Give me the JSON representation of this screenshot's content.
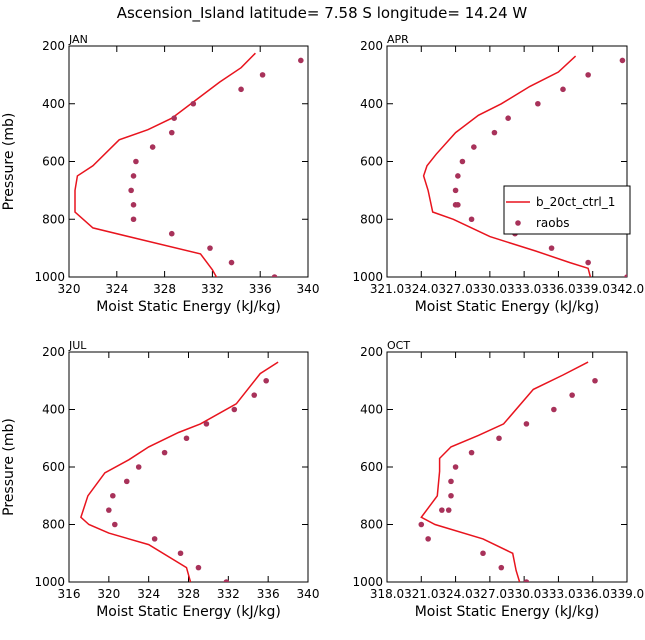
{
  "figure": {
    "title": "Ascension_Island  latitude= 7.58 S longitude= 14.24 W"
  },
  "legend": {
    "model_label": "b_20ct_ctrl_1",
    "obs_label": "raobs",
    "line_color": "#e8141e",
    "dot_color": "#a8325a"
  },
  "chart_data": [
    {
      "type": "line",
      "panel": "JAN",
      "title": "JAN",
      "xlabel": "Moist Static Energy (kJ/kg)",
      "ylabel": "Pressure (mb)",
      "xlim": [
        320,
        340
      ],
      "ylim": [
        1000,
        200
      ],
      "xticks": [
        320,
        324,
        328,
        332,
        336,
        340
      ],
      "xtick_labels": [
        "320",
        "324",
        "328",
        "332",
        "336",
        "340"
      ],
      "yticks": [
        200,
        400,
        600,
        800,
        1000
      ],
      "ytick_labels": [
        "200",
        "400",
        "600",
        "800",
        "1000"
      ],
      "series": [
        {
          "name": "b_20ct_ctrl_1",
          "style": "line",
          "x": [
            335.6,
            334.4,
            332.6,
            328.6,
            326.6,
            324.2,
            322.0,
            320.7,
            320.5,
            320.5,
            320.5,
            322.0,
            326.0,
            331.0,
            332.0,
            332.4
          ],
          "y": [
            225,
            275,
            325,
            450,
            490,
            525,
            615,
            650,
            700,
            750,
            775,
            830,
            870,
            920,
            975,
            1005
          ]
        },
        {
          "name": "raobs",
          "style": "points",
          "x": [
            339.4,
            336.2,
            334.4,
            330.4,
            328.8,
            328.6,
            327.0,
            325.6,
            325.4,
            325.2,
            325.4,
            325.4,
            328.6,
            331.8,
            333.6,
            337.2
          ],
          "y": [
            250,
            300,
            350,
            400,
            450,
            500,
            550,
            600,
            650,
            700,
            750,
            800,
            850,
            900,
            950,
            1000
          ]
        }
      ]
    },
    {
      "type": "line",
      "panel": "APR",
      "title": "APR",
      "xlabel": "Moist Static Energy (kJ/kg)",
      "ylabel": "",
      "xlim": [
        321.0,
        342.0
      ],
      "ylim": [
        1000,
        200
      ],
      "xticks": [
        321.0,
        324.0,
        327.0,
        330.0,
        333.0,
        336.0,
        339.0,
        342.0
      ],
      "xtick_labels": [
        "321.0",
        "324.0",
        "327.0",
        "330.0",
        "333.0",
        "336.0",
        "339.0",
        "342.0"
      ],
      "yticks": [
        200,
        400,
        600,
        800,
        1000
      ],
      "ytick_labels": [
        "200",
        "400",
        "600",
        "800",
        "1000"
      ],
      "series": [
        {
          "name": "b_20ct_ctrl_1",
          "style": "line",
          "x": [
            337.5,
            336.0,
            333.5,
            331.0,
            329.0,
            327.0,
            325.3,
            324.5,
            324.2,
            324.6,
            325.0,
            326.8,
            330.0,
            334.0,
            337.0,
            338.6,
            338.8
          ],
          "y": [
            235,
            290,
            340,
            400,
            440,
            500,
            575,
            615,
            650,
            700,
            775,
            800,
            860,
            910,
            950,
            970,
            1000
          ]
        },
        {
          "name": "raobs",
          "style": "points",
          "x": [
            341.6,
            338.6,
            336.4,
            334.2,
            331.6,
            330.4,
            328.6,
            327.6,
            327.2,
            327.0,
            327.0,
            327.2,
            328.4,
            332.2,
            335.4,
            338.6,
            342.0
          ],
          "y": [
            250,
            300,
            350,
            400,
            450,
            500,
            550,
            600,
            650,
            700,
            750,
            750,
            800,
            850,
            900,
            950,
            1000
          ]
        }
      ]
    },
    {
      "type": "line",
      "panel": "JUL",
      "title": "JUL",
      "xlabel": "Moist Static Energy (kJ/kg)",
      "ylabel": "Pressure (mb)",
      "xlim": [
        316,
        340
      ],
      "ylim": [
        1000,
        200
      ],
      "xticks": [
        316,
        320,
        324,
        328,
        332,
        336,
        340
      ],
      "xtick_labels": [
        "316",
        "320",
        "324",
        "328",
        "332",
        "336",
        "340"
      ],
      "yticks": [
        200,
        400,
        600,
        800,
        1000
      ],
      "ytick_labels": [
        "200",
        "400",
        "600",
        "800",
        "1000"
      ],
      "series": [
        {
          "name": "b_20ct_ctrl_1",
          "style": "line",
          "x": [
            337.0,
            335.2,
            332.8,
            329.2,
            327.0,
            324.0,
            322.0,
            319.6,
            317.9,
            317.2,
            318.0,
            320.0,
            324.0,
            327.8,
            328.0,
            328.2
          ],
          "y": [
            235,
            275,
            380,
            450,
            480,
            530,
            575,
            620,
            700,
            775,
            800,
            830,
            870,
            950,
            975,
            1000
          ]
        },
        {
          "name": "raobs",
          "style": "points",
          "x": [
            335.8,
            334.6,
            332.6,
            329.8,
            327.8,
            325.6,
            323.0,
            321.8,
            320.4,
            320.0,
            320.6,
            324.6,
            327.2,
            329.0,
            331.8
          ],
          "y": [
            300,
            350,
            400,
            450,
            500,
            550,
            600,
            650,
            700,
            750,
            800,
            850,
            900,
            950,
            1000
          ]
        }
      ]
    },
    {
      "type": "line",
      "panel": "OCT",
      "title": "OCT",
      "xlabel": "Moist Static Energy (kJ/kg)",
      "ylabel": "",
      "xlim": [
        318.0,
        339.0
      ],
      "ylim": [
        1000,
        200
      ],
      "xticks": [
        318.0,
        321.0,
        324.0,
        327.0,
        330.0,
        333.0,
        336.0,
        339.0
      ],
      "xtick_labels": [
        "318.0",
        "321.0",
        "324.0",
        "327.0",
        "330.0",
        "333.0",
        "336.0",
        "339.0"
      ],
      "yticks": [
        200,
        400,
        600,
        800,
        1000
      ],
      "ytick_labels": [
        "200",
        "400",
        "600",
        "800",
        "1000"
      ],
      "series": [
        {
          "name": "b_20ct_ctrl_1",
          "style": "line",
          "x": [
            335.6,
            333.4,
            330.8,
            328.2,
            326.0,
            323.6,
            322.6,
            322.6,
            322.4,
            321.0,
            322.2,
            326.4,
            329.0,
            329.3,
            329.6
          ],
          "y": [
            235,
            280,
            330,
            450,
            490,
            530,
            570,
            615,
            700,
            775,
            800,
            850,
            900,
            960,
            1000
          ]
        },
        {
          "name": "raobs",
          "style": "points",
          "x": [
            336.2,
            334.2,
            332.6,
            330.2,
            327.8,
            325.4,
            324.0,
            323.6,
            323.6,
            323.4,
            322.8,
            321.0,
            321.6,
            326.4,
            328.0,
            330.2
          ],
          "y": [
            300,
            350,
            400,
            450,
            500,
            550,
            600,
            650,
            700,
            750,
            750,
            800,
            850,
            900,
            950,
            1000
          ]
        }
      ]
    }
  ]
}
